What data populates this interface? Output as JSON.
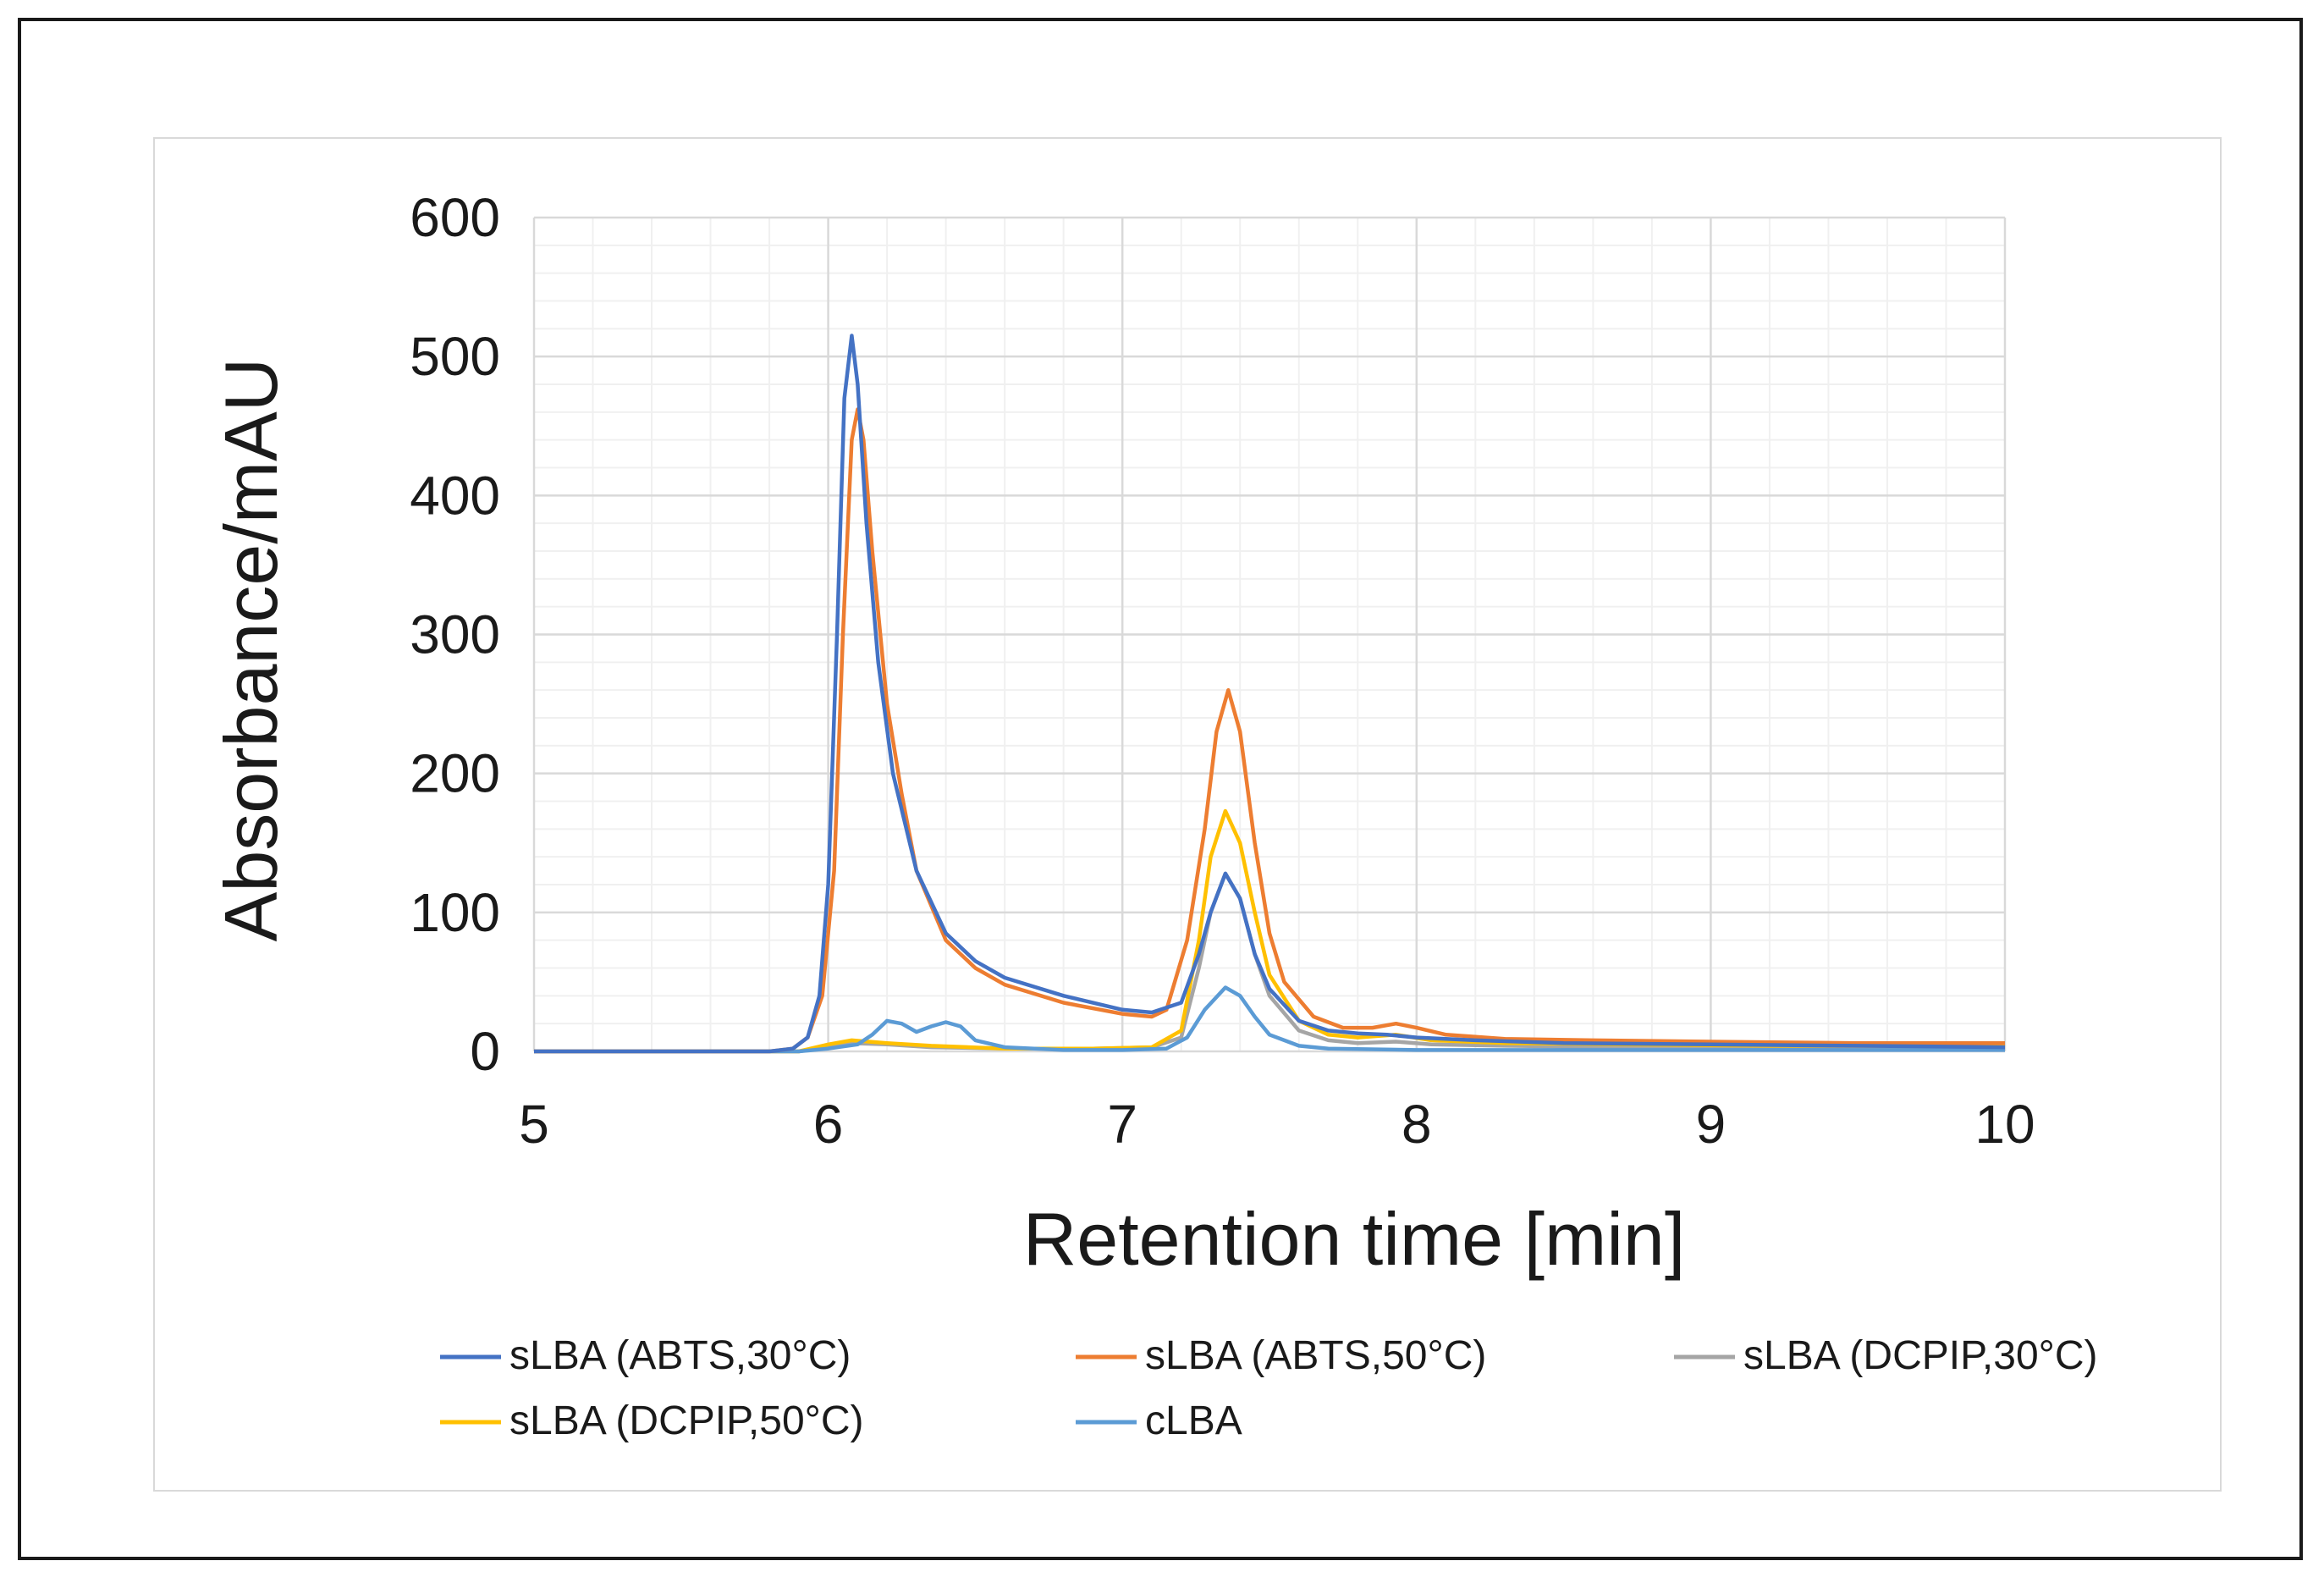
{
  "chart_data": {
    "type": "line",
    "title": "",
    "xlabel": "Retention time [min]",
    "ylabel": "Absorbance/mAU",
    "xlim": [
      5,
      10
    ],
    "ylim": [
      0,
      600
    ],
    "xticks": [
      5,
      6,
      7,
      8,
      9,
      10
    ],
    "yticks": [
      0,
      100,
      200,
      300,
      400,
      500,
      600
    ],
    "xtick_labels": [
      "5",
      "6",
      "7",
      "8",
      "9",
      "10"
    ],
    "ytick_labels": [
      "0",
      "100",
      "200",
      "300",
      "400",
      "500",
      "600"
    ],
    "grid": true,
    "legend_position": "bottom",
    "series": [
      {
        "name": "sLBA (ABTS,30°C)",
        "color": "#4472C4",
        "points": [
          [
            5.0,
            0
          ],
          [
            5.8,
            0
          ],
          [
            5.88,
            2
          ],
          [
            5.93,
            10
          ],
          [
            5.97,
            40
          ],
          [
            6.0,
            120
          ],
          [
            6.03,
            300
          ],
          [
            6.055,
            470
          ],
          [
            6.08,
            515
          ],
          [
            6.1,
            480
          ],
          [
            6.13,
            380
          ],
          [
            6.17,
            280
          ],
          [
            6.22,
            200
          ],
          [
            6.3,
            130
          ],
          [
            6.4,
            85
          ],
          [
            6.5,
            65
          ],
          [
            6.6,
            53
          ],
          [
            6.8,
            40
          ],
          [
            7.0,
            30
          ],
          [
            7.1,
            28
          ],
          [
            7.2,
            35
          ],
          [
            7.26,
            70
          ],
          [
            7.3,
            100
          ],
          [
            7.35,
            128
          ],
          [
            7.4,
            110
          ],
          [
            7.45,
            70
          ],
          [
            7.5,
            45
          ],
          [
            7.6,
            22
          ],
          [
            7.7,
            15
          ],
          [
            7.8,
            13
          ],
          [
            7.9,
            12
          ],
          [
            8.0,
            10
          ],
          [
            8.2,
            8
          ],
          [
            8.5,
            6
          ],
          [
            9.0,
            5
          ],
          [
            9.5,
            4
          ],
          [
            10.0,
            3
          ]
        ]
      },
      {
        "name": "sLBA (ABTS,50°C)",
        "color": "#ED7D31",
        "points": [
          [
            5.0,
            0
          ],
          [
            5.8,
            0
          ],
          [
            5.88,
            2
          ],
          [
            5.93,
            10
          ],
          [
            5.98,
            40
          ],
          [
            6.02,
            130
          ],
          [
            6.05,
            300
          ],
          [
            6.08,
            440
          ],
          [
            6.1,
            462
          ],
          [
            6.12,
            440
          ],
          [
            6.15,
            360
          ],
          [
            6.2,
            250
          ],
          [
            6.25,
            185
          ],
          [
            6.3,
            130
          ],
          [
            6.4,
            80
          ],
          [
            6.5,
            60
          ],
          [
            6.6,
            48
          ],
          [
            6.8,
            35
          ],
          [
            7.0,
            27
          ],
          [
            7.1,
            25
          ],
          [
            7.15,
            30
          ],
          [
            7.22,
            80
          ],
          [
            7.28,
            160
          ],
          [
            7.32,
            230
          ],
          [
            7.36,
            260
          ],
          [
            7.4,
            230
          ],
          [
            7.45,
            150
          ],
          [
            7.5,
            85
          ],
          [
            7.55,
            50
          ],
          [
            7.65,
            25
          ],
          [
            7.75,
            17
          ],
          [
            7.85,
            17
          ],
          [
            7.93,
            20
          ],
          [
            8.0,
            17
          ],
          [
            8.1,
            12
          ],
          [
            8.3,
            9
          ],
          [
            8.6,
            8
          ],
          [
            9.0,
            7
          ],
          [
            9.5,
            6
          ],
          [
            10.0,
            6
          ]
        ]
      },
      {
        "name": "sLBA (DCPIP,30°C)",
        "color": "#A5A5A5",
        "points": [
          [
            5.0,
            0
          ],
          [
            5.9,
            0
          ],
          [
            6.0,
            3
          ],
          [
            6.08,
            6
          ],
          [
            6.2,
            5
          ],
          [
            6.35,
            3
          ],
          [
            6.6,
            2
          ],
          [
            6.9,
            2
          ],
          [
            7.1,
            3
          ],
          [
            7.2,
            10
          ],
          [
            7.26,
            60
          ],
          [
            7.3,
            100
          ],
          [
            7.35,
            128
          ],
          [
            7.4,
            110
          ],
          [
            7.45,
            70
          ],
          [
            7.5,
            40
          ],
          [
            7.6,
            15
          ],
          [
            7.7,
            8
          ],
          [
            7.8,
            6
          ],
          [
            7.93,
            7
          ],
          [
            8.05,
            5
          ],
          [
            8.3,
            4
          ],
          [
            8.7,
            3
          ],
          [
            9.2,
            3
          ],
          [
            10.0,
            3
          ]
        ]
      },
      {
        "name": "sLBA (DCPIP,50°C)",
        "color": "#FFC000",
        "points": [
          [
            5.0,
            0
          ],
          [
            5.9,
            0
          ],
          [
            6.0,
            5
          ],
          [
            6.08,
            8
          ],
          [
            6.2,
            6
          ],
          [
            6.35,
            4
          ],
          [
            6.6,
            2
          ],
          [
            6.9,
            2
          ],
          [
            7.1,
            3
          ],
          [
            7.2,
            15
          ],
          [
            7.26,
            80
          ],
          [
            7.3,
            140
          ],
          [
            7.35,
            173
          ],
          [
            7.4,
            150
          ],
          [
            7.45,
            100
          ],
          [
            7.5,
            55
          ],
          [
            7.6,
            22
          ],
          [
            7.7,
            12
          ],
          [
            7.8,
            10
          ],
          [
            7.93,
            12
          ],
          [
            8.05,
            8
          ],
          [
            8.3,
            6
          ],
          [
            8.7,
            5
          ],
          [
            9.2,
            4
          ],
          [
            10.0,
            4
          ]
        ]
      },
      {
        "name": "cLBA",
        "color": "#5B9BD5",
        "points": [
          [
            5.0,
            0
          ],
          [
            5.9,
            0
          ],
          [
            6.0,
            2
          ],
          [
            6.1,
            5
          ],
          [
            6.15,
            12
          ],
          [
            6.2,
            22
          ],
          [
            6.25,
            20
          ],
          [
            6.3,
            14
          ],
          [
            6.35,
            18
          ],
          [
            6.4,
            21
          ],
          [
            6.45,
            18
          ],
          [
            6.5,
            8
          ],
          [
            6.6,
            3
          ],
          [
            6.8,
            1
          ],
          [
            7.0,
            1
          ],
          [
            7.15,
            2
          ],
          [
            7.22,
            10
          ],
          [
            7.28,
            30
          ],
          [
            7.35,
            46
          ],
          [
            7.4,
            40
          ],
          [
            7.45,
            25
          ],
          [
            7.5,
            12
          ],
          [
            7.6,
            4
          ],
          [
            7.7,
            2
          ],
          [
            8.0,
            1
          ],
          [
            9.0,
            1
          ],
          [
            10.0,
            1
          ]
        ]
      }
    ]
  }
}
